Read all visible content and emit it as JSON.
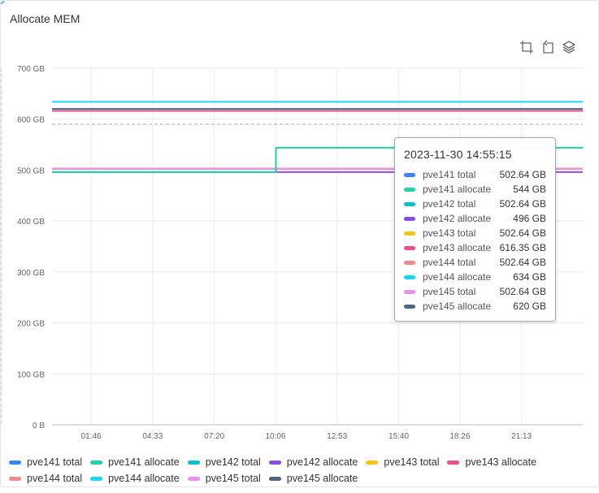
{
  "panel": {
    "title": "Allocate MEM"
  },
  "toolbox": [
    {
      "name": "zoom-icon"
    },
    {
      "name": "zoom-reset-icon"
    },
    {
      "name": "layers-icon"
    }
  ],
  "chart_data": {
    "type": "line",
    "title": "Allocate MEM",
    "xlabel": "",
    "ylabel": "",
    "ylim": [
      0,
      700
    ],
    "yticks": [
      "0 B",
      "100 GB",
      "200 GB",
      "300 GB",
      "400 GB",
      "500 GB",
      "600 GB",
      "700 GB"
    ],
    "xticks": [
      "01:46",
      "04:33",
      "07:20",
      "10:06",
      "12:53",
      "15:40",
      "18:26",
      "21:13"
    ],
    "x": [
      "00:00",
      "01:46",
      "04:33",
      "07:20",
      "10:06",
      "10:07",
      "12:53",
      "14:55:15",
      "15:40",
      "18:26",
      "21:13",
      "23:59"
    ],
    "markline": 590,
    "series": [
      {
        "name": "pve141 total",
        "color": "#3b82f6",
        "values": [
          502.64,
          502.64,
          502.64,
          502.64,
          502.64,
          502.64,
          502.64,
          502.64,
          502.64,
          502.64,
          502.64,
          502.64
        ]
      },
      {
        "name": "pve141 allocate",
        "color": "#1ed3a5",
        "values": [
          496,
          496,
          496,
          496,
          496,
          544,
          544,
          544,
          544,
          544,
          544,
          544
        ]
      },
      {
        "name": "pve142 total",
        "color": "#0abed2",
        "values": [
          502.64,
          502.64,
          502.64,
          502.64,
          502.64,
          502.64,
          502.64,
          502.64,
          502.64,
          502.64,
          502.64,
          502.64
        ]
      },
      {
        "name": "pve142 allocate",
        "color": "#8b4fe8",
        "values": [
          496,
          496,
          496,
          496,
          496,
          496,
          496,
          496,
          496,
          496,
          496,
          496
        ]
      },
      {
        "name": "pve143 total",
        "color": "#f5c518",
        "values": [
          502.64,
          502.64,
          502.64,
          502.64,
          502.64,
          502.64,
          502.64,
          502.64,
          502.64,
          502.64,
          502.64,
          502.64
        ]
      },
      {
        "name": "pve143 allocate",
        "color": "#e8508d",
        "values": [
          616.35,
          616.35,
          616.35,
          616.35,
          616.35,
          616.35,
          616.35,
          616.35,
          616.35,
          616.35,
          616.35,
          616.35
        ]
      },
      {
        "name": "pve144 total",
        "color": "#f28b8b",
        "values": [
          502.64,
          502.64,
          502.64,
          502.64,
          502.64,
          502.64,
          502.64,
          502.64,
          502.64,
          502.64,
          502.64,
          502.64
        ]
      },
      {
        "name": "pve144 allocate",
        "color": "#16d9f0",
        "values": [
          634,
          634,
          634,
          634,
          634,
          634,
          634,
          634,
          634,
          634,
          634,
          634
        ]
      },
      {
        "name": "pve145 total",
        "color": "#ee90ea",
        "values": [
          502.64,
          502.64,
          502.64,
          502.64,
          502.64,
          502.64,
          502.64,
          502.64,
          502.64,
          502.64,
          502.64,
          502.64
        ]
      },
      {
        "name": "pve145 allocate",
        "color": "#4a6783",
        "values": [
          620,
          620,
          620,
          620,
          620,
          620,
          620,
          620,
          620,
          620,
          620,
          620
        ]
      }
    ],
    "tooltip": {
      "time": "2023-11-30 14:55:15",
      "rows": [
        {
          "name": "pve141 total",
          "value": "502.64 GB"
        },
        {
          "name": "pve141 allocate",
          "value": "544 GB"
        },
        {
          "name": "pve142 total",
          "value": "502.64 GB"
        },
        {
          "name": "pve142 allocate",
          "value": "496 GB"
        },
        {
          "name": "pve143 total",
          "value": "502.64 GB"
        },
        {
          "name": "pve143 allocate",
          "value": "616.35 GB"
        },
        {
          "name": "pve144 total",
          "value": "502.64 GB"
        },
        {
          "name": "pve144 allocate",
          "value": "634 GB"
        },
        {
          "name": "pve145 total",
          "value": "502.64 GB"
        },
        {
          "name": "pve145 allocate",
          "value": "620 GB"
        }
      ]
    },
    "legend_position": "bottom"
  }
}
